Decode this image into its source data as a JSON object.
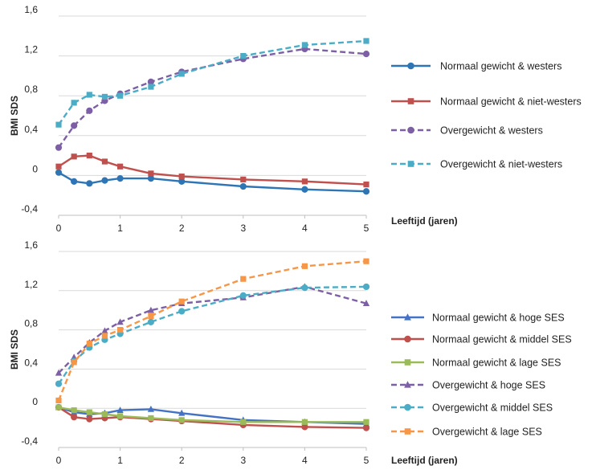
{
  "chart_data": [
    {
      "type": "line",
      "xlabel": "Leeftijd (jaren)",
      "ylabel": "BMI SDS",
      "xlim": [
        0,
        5
      ],
      "ylim": [
        -0.4,
        1.6
      ],
      "x_ticks": [
        "0",
        "1",
        "2",
        "3",
        "4",
        "5"
      ],
      "y_ticks": [
        "-0,4",
        "0",
        "0,4",
        "0,8",
        "1,2",
        "1,6"
      ],
      "grid": "horizontal",
      "legend_position": "right",
      "series": [
        {
          "name": "Normaal gewicht & westers",
          "color": "#2e75b6",
          "marker": "circle",
          "dash": "solid",
          "points": [
            [
              0,
              0.03
            ],
            [
              0.25,
              -0.06
            ],
            [
              0.5,
              -0.08
            ],
            [
              0.75,
              -0.05
            ],
            [
              1,
              -0.03
            ],
            [
              1.5,
              -0.03
            ],
            [
              2,
              -0.06
            ],
            [
              3,
              -0.11
            ],
            [
              4,
              -0.14
            ],
            [
              5,
              -0.16
            ]
          ]
        },
        {
          "name": "Normaal gewicht & niet-westers",
          "color": "#c0504d",
          "marker": "square",
          "dash": "solid",
          "points": [
            [
              0,
              0.09
            ],
            [
              0.25,
              0.19
            ],
            [
              0.5,
              0.2
            ],
            [
              0.75,
              0.14
            ],
            [
              1,
              0.09
            ],
            [
              1.5,
              0.02
            ],
            [
              2,
              -0.01
            ],
            [
              3,
              -0.04
            ],
            [
              4,
              -0.06
            ],
            [
              5,
              -0.09
            ]
          ]
        },
        {
          "name": "Overgewicht & westers",
          "color": "#7d5fa5",
          "marker": "circle",
          "dash": "dashed",
          "points": [
            [
              0,
              0.28
            ],
            [
              0.25,
              0.5
            ],
            [
              0.5,
              0.65
            ],
            [
              0.75,
              0.75
            ],
            [
              1,
              0.82
            ],
            [
              1.5,
              0.94
            ],
            [
              2,
              1.04
            ],
            [
              3,
              1.17
            ],
            [
              4,
              1.27
            ],
            [
              5,
              1.22
            ]
          ]
        },
        {
          "name": "Overgewicht & niet-westers",
          "color": "#4bacc6",
          "marker": "square",
          "dash": "dashed",
          "points": [
            [
              0,
              0.51
            ],
            [
              0.25,
              0.73
            ],
            [
              0.5,
              0.81
            ],
            [
              0.75,
              0.79
            ],
            [
              1,
              0.8
            ],
            [
              1.5,
              0.89
            ],
            [
              2,
              1.02
            ],
            [
              3,
              1.2
            ],
            [
              4,
              1.31
            ],
            [
              5,
              1.35
            ]
          ]
        }
      ]
    },
    {
      "type": "line",
      "xlabel": "Leeftijd (jaren)",
      "ylabel": "BMI SDS",
      "xlim": [
        0,
        5
      ],
      "ylim": [
        -0.4,
        1.6
      ],
      "x_ticks": [
        "0",
        "1",
        "2",
        "3",
        "4",
        "5"
      ],
      "y_ticks": [
        "-0,4",
        "0",
        "0,4",
        "0,8",
        "1,2",
        "1,6"
      ],
      "grid": "horizontal",
      "legend_position": "right",
      "series": [
        {
          "name": "Normaal gewicht & hoge SES",
          "color": "#4472c4",
          "marker": "triangle",
          "dash": "solid",
          "points": [
            [
              0,
              0.01
            ],
            [
              0.25,
              -0.04
            ],
            [
              0.5,
              -0.06
            ],
            [
              0.75,
              -0.05
            ],
            [
              1,
              -0.02
            ],
            [
              1.5,
              -0.01
            ],
            [
              2,
              -0.05
            ],
            [
              3,
              -0.12
            ],
            [
              4,
              -0.14
            ],
            [
              5,
              -0.16
            ]
          ]
        },
        {
          "name": "Normaal gewicht & middel SES",
          "color": "#c0504d",
          "marker": "circle",
          "dash": "solid",
          "points": [
            [
              0,
              0.01
            ],
            [
              0.25,
              -0.09
            ],
            [
              0.5,
              -0.11
            ],
            [
              0.75,
              -0.1
            ],
            [
              1,
              -0.09
            ],
            [
              1.5,
              -0.11
            ],
            [
              2,
              -0.13
            ],
            [
              3,
              -0.17
            ],
            [
              4,
              -0.19
            ],
            [
              5,
              -0.2
            ]
          ]
        },
        {
          "name": "Normaal gewicht & lage SES",
          "color": "#9bbb59",
          "marker": "square",
          "dash": "solid",
          "points": [
            [
              0,
              0.01
            ],
            [
              0.25,
              -0.02
            ],
            [
              0.5,
              -0.04
            ],
            [
              0.75,
              -0.06
            ],
            [
              1,
              -0.08
            ],
            [
              1.5,
              -0.1
            ],
            [
              2,
              -0.12
            ],
            [
              3,
              -0.14
            ],
            [
              4,
              -0.14
            ],
            [
              5,
              -0.14
            ]
          ]
        },
        {
          "name": "Overgewicht & hoge SES",
          "color": "#7d5fa5",
          "marker": "triangle",
          "dash": "dashed",
          "points": [
            [
              0,
              0.36
            ],
            [
              0.25,
              0.52
            ],
            [
              0.5,
              0.67
            ],
            [
              0.75,
              0.79
            ],
            [
              1,
              0.88
            ],
            [
              1.5,
              1.0
            ],
            [
              2,
              1.07
            ],
            [
              3,
              1.13
            ],
            [
              4,
              1.24
            ],
            [
              5,
              1.07
            ]
          ]
        },
        {
          "name": "Overgewicht & middel SES",
          "color": "#4bacc6",
          "marker": "circle",
          "dash": "dashed",
          "points": [
            [
              0,
              0.25
            ],
            [
              0.25,
              0.48
            ],
            [
              0.5,
              0.62
            ],
            [
              0.75,
              0.7
            ],
            [
              1,
              0.76
            ],
            [
              1.5,
              0.88
            ],
            [
              2,
              0.99
            ],
            [
              3,
              1.15
            ],
            [
              4,
              1.23
            ],
            [
              5,
              1.24
            ]
          ]
        },
        {
          "name": "Overgewicht & lage SES",
          "color": "#f79646",
          "marker": "square",
          "dash": "dashed",
          "points": [
            [
              0,
              0.08
            ],
            [
              0.25,
              0.47
            ],
            [
              0.5,
              0.66
            ],
            [
              0.75,
              0.74
            ],
            [
              1,
              0.8
            ],
            [
              1.5,
              0.94
            ],
            [
              2,
              1.09
            ],
            [
              3,
              1.32
            ],
            [
              4,
              1.45
            ],
            [
              5,
              1.5
            ]
          ]
        }
      ]
    }
  ]
}
